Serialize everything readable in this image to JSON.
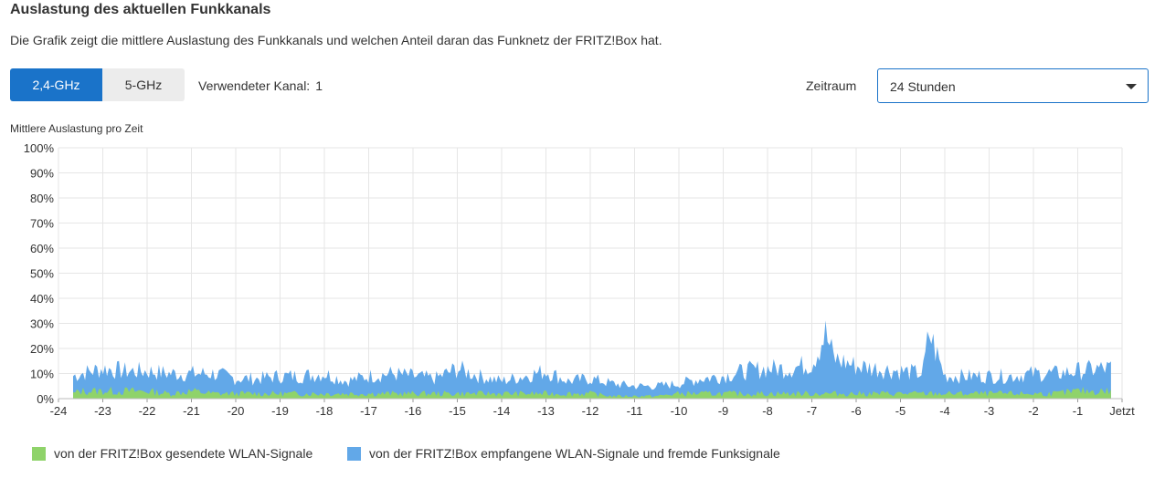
{
  "header": {
    "title": "Auslastung des aktuellen Funkkanals",
    "description": "Die Grafik zeigt die mittlere Auslastung des Funkkanals und welchen Anteil daran das Funknetz der FRITZ!Box hat."
  },
  "bands": [
    {
      "label": "2,4-GHz",
      "active": true
    },
    {
      "label": "5-GHz",
      "active": false
    }
  ],
  "channel": {
    "label": "Verwendeter Kanal:",
    "value": "1"
  },
  "timerange": {
    "label": "Zeitraum",
    "value": "24 Stunden"
  },
  "colors": {
    "sent": "#8fd36a",
    "received": "#62a8e8",
    "accent": "#1a73c9"
  },
  "chart_data": {
    "type": "area",
    "ylabel": "Mittlere Auslastung pro Zeit",
    "ylim": [
      0,
      100
    ],
    "yticks": [
      "0%",
      "10%",
      "20%",
      "30%",
      "40%",
      "50%",
      "60%",
      "70%",
      "80%",
      "90%",
      "100%"
    ],
    "xlim": [
      -24,
      0
    ],
    "xticks": [
      "-24",
      "-23",
      "-22",
      "-21",
      "-20",
      "-19",
      "-18",
      "-17",
      "-16",
      "-15",
      "-14",
      "-13",
      "-12",
      "-11",
      "-10",
      "-9",
      "-8",
      "-7",
      "-6",
      "-5",
      "-4",
      "-3",
      "-2",
      "-1",
      "Jetzt"
    ],
    "grid": true,
    "legend_position": "bottom-left",
    "series": [
      {
        "name": "von der FRITZ!Box gesendete WLAN-Signale",
        "x": [
          -23.67,
          -23.5,
          -23,
          -22.5,
          -22,
          -21.5,
          -21,
          -20.5,
          -20,
          -19.5,
          -19,
          -18.5,
          -18,
          -17.5,
          -17,
          -16.5,
          -16,
          -15.5,
          -15,
          -14.5,
          -14,
          -13.5,
          -13,
          -12.5,
          -12,
          -11.5,
          -11,
          -10.5,
          -10,
          -9.5,
          -9,
          -8.5,
          -8,
          -7.5,
          -7,
          -6.5,
          -6,
          -5.5,
          -5,
          -4.5,
          -4,
          -3.5,
          -3,
          -2.5,
          -2,
          -1.5,
          -1,
          -0.5,
          -0.25
        ],
        "values": [
          2,
          3,
          3,
          3,
          3,
          2,
          3,
          2,
          2,
          2,
          2,
          2,
          2,
          2,
          2,
          2,
          2,
          2,
          2,
          2,
          2,
          2,
          2,
          2,
          2,
          1,
          1,
          1,
          2,
          2,
          2,
          2,
          2,
          2,
          2,
          2,
          2,
          2,
          2,
          2,
          2,
          2,
          2,
          2,
          2,
          2,
          3,
          3,
          3
        ]
      },
      {
        "name": "von der FRITZ!Box empfangene WLAN-Signale und fremde Funksignale",
        "x": [
          -23.67,
          -23.5,
          -23,
          -22.5,
          -22,
          -21.5,
          -21,
          -20.5,
          -20,
          -19.5,
          -19,
          -18.5,
          -18,
          -17.5,
          -17,
          -16.5,
          -16,
          -15.5,
          -15,
          -14.5,
          -14,
          -13.5,
          -13,
          -12.5,
          -12,
          -11.5,
          -11,
          -10.5,
          -10,
          -9.5,
          -9,
          -8.5,
          -8,
          -7.5,
          -7,
          -6.7,
          -6.5,
          -6,
          -5.5,
          -5,
          -4.5,
          -4.35,
          -4,
          -3.5,
          -3,
          -2.5,
          -2,
          -1.5,
          -1,
          -0.5,
          -0.25
        ],
        "values": [
          7,
          8,
          9,
          8,
          8,
          7,
          8,
          7,
          6,
          6,
          7,
          7,
          8,
          5,
          7,
          8,
          7,
          6,
          10,
          7,
          5,
          7,
          9,
          5,
          6,
          4,
          4,
          4,
          5,
          6,
          7,
          9,
          10,
          10,
          12,
          24,
          14,
          11,
          10,
          9,
          8,
          24,
          7,
          7,
          7,
          7,
          8,
          8,
          9,
          9,
          9
        ]
      }
    ]
  }
}
